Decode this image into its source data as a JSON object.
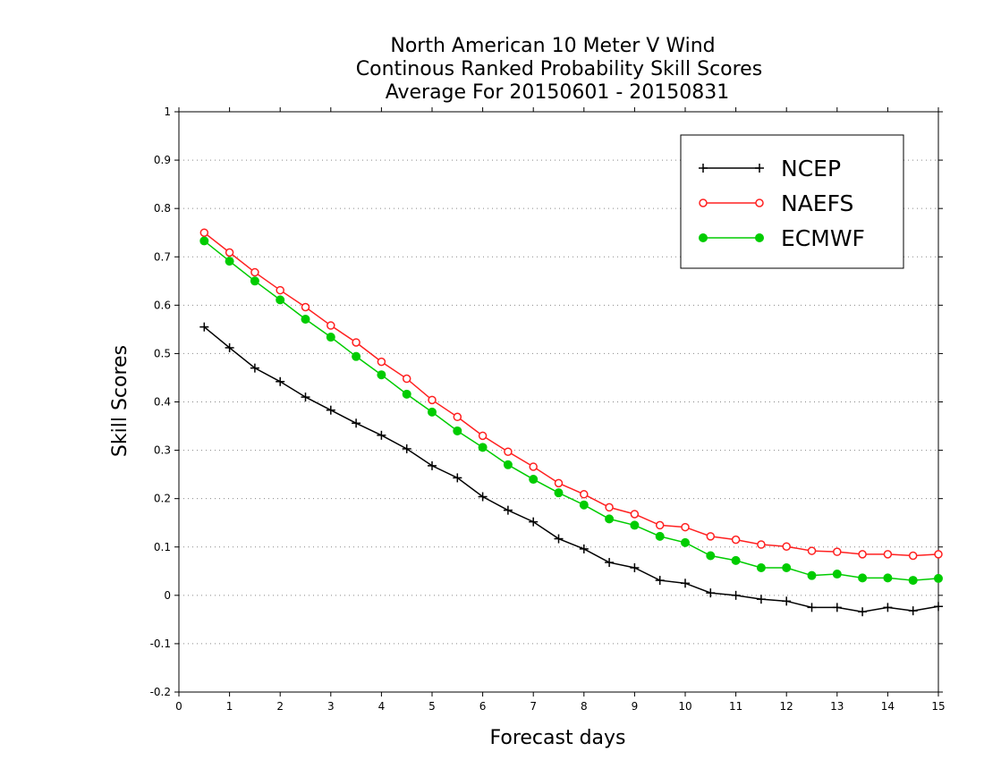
{
  "chart_data": {
    "type": "line",
    "title": [
      "North American 10 Meter V Wind",
      "Continous Ranked Probability Skill Scores",
      "Average For 20150601 - 20150831"
    ],
    "xlabel": "Forecast days",
    "ylabel": "Skill Scores",
    "xlim": [
      0,
      15
    ],
    "ylim": [
      -0.2,
      1
    ],
    "x_ticks": [
      "0",
      "1",
      "2",
      "3",
      "4",
      "5",
      "6",
      "7",
      "8",
      "9",
      "10",
      "11",
      "12",
      "13",
      "14",
      "15"
    ],
    "y_ticks": [
      "-0.2",
      "-0.1",
      "0",
      "0.1",
      "0.2",
      "0.3",
      "0.4",
      "0.5",
      "0.6",
      "0.7",
      "0.8",
      "0.9",
      "1"
    ],
    "grid": "horizontal dotted",
    "legend_position": "top-right",
    "x": [
      0.5,
      1,
      1.5,
      2,
      2.5,
      3,
      3.5,
      4,
      4.5,
      5,
      5.5,
      6,
      6.5,
      7,
      7.5,
      8,
      8.5,
      9,
      9.5,
      10,
      10.5,
      11,
      11.5,
      12,
      12.5,
      13,
      13.5,
      14,
      14.5,
      15
    ],
    "series": [
      {
        "name": "NCEP",
        "color": "#000000",
        "marker": "plus",
        "values": [
          0.555,
          0.512,
          0.47,
          0.442,
          0.41,
          0.383,
          0.356,
          0.331,
          0.303,
          0.268,
          0.243,
          0.204,
          0.176,
          0.152,
          0.117,
          0.096,
          0.068,
          0.057,
          0.031,
          0.025,
          0.005,
          0.0,
          -0.008,
          -0.012,
          -0.025,
          -0.025,
          -0.034,
          -0.025,
          -0.032,
          -0.023
        ]
      },
      {
        "name": "NAEFS",
        "color": "#ff2020",
        "marker": "open-circle",
        "values": [
          0.75,
          0.709,
          0.668,
          0.631,
          0.596,
          0.558,
          0.523,
          0.483,
          0.448,
          0.404,
          0.369,
          0.33,
          0.297,
          0.266,
          0.232,
          0.209,
          0.182,
          0.168,
          0.145,
          0.141,
          0.122,
          0.115,
          0.105,
          0.101,
          0.092,
          0.09,
          0.085,
          0.085,
          0.082,
          0.085
        ]
      },
      {
        "name": "ECMWF",
        "color": "#00cc00",
        "marker": "filled-circle",
        "values": [
          0.733,
          0.691,
          0.65,
          0.611,
          0.571,
          0.534,
          0.494,
          0.456,
          0.416,
          0.379,
          0.34,
          0.306,
          0.27,
          0.24,
          0.212,
          0.187,
          0.158,
          0.145,
          0.122,
          0.109,
          0.082,
          0.072,
          0.057,
          0.057,
          0.041,
          0.044,
          0.036,
          0.036,
          0.031,
          0.035
        ]
      }
    ]
  }
}
